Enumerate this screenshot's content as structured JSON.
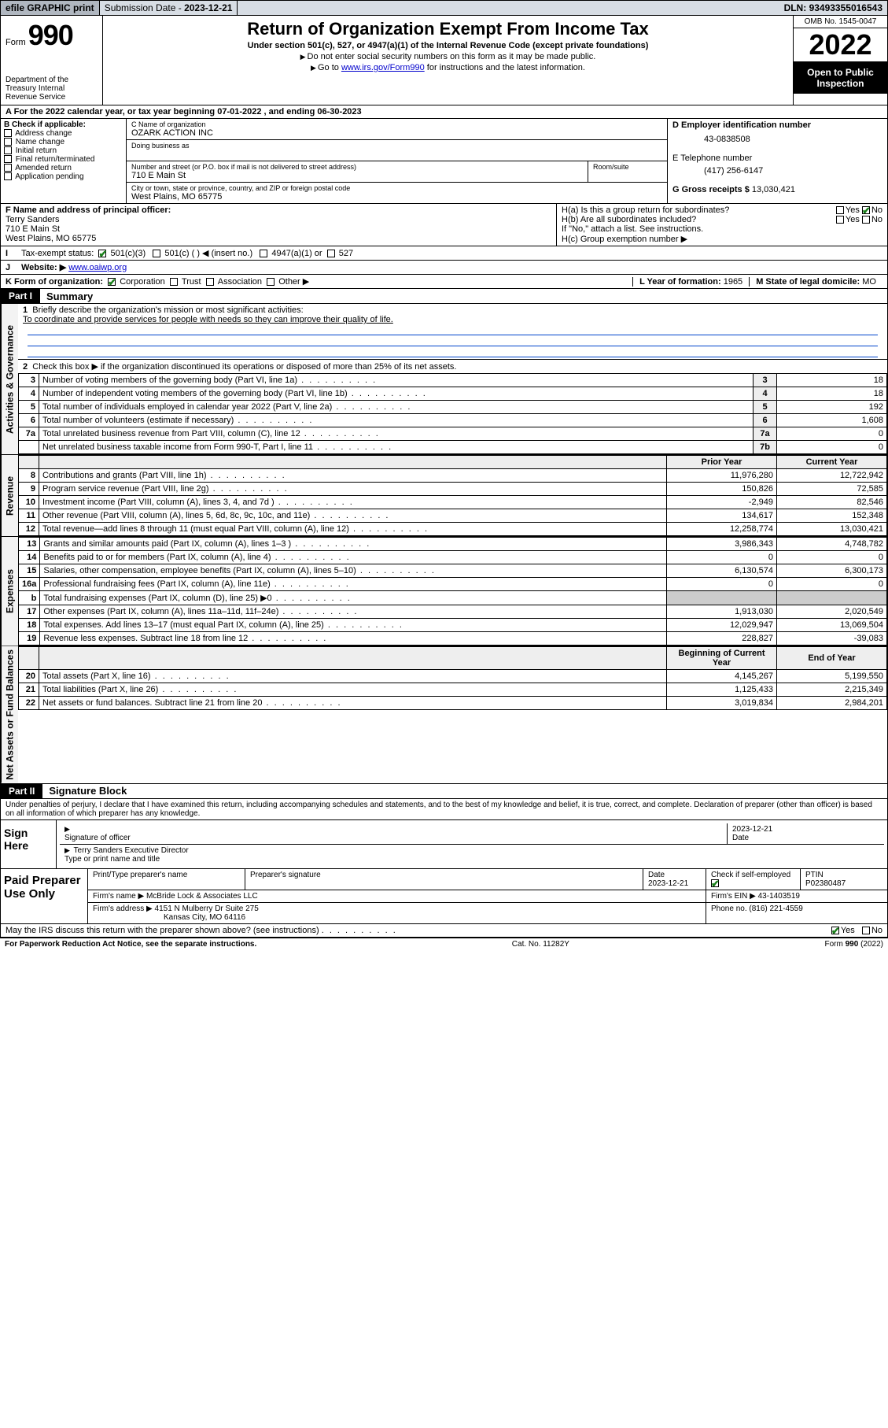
{
  "topbar": {
    "efile": "efile GRAPHIC print",
    "submission_label": "Submission Date - ",
    "submission_date": "2023-12-21",
    "dln_label": "DLN: ",
    "dln": "93493355016543"
  },
  "header": {
    "form_word": "Form",
    "form_no": "990",
    "dept": "Department of the Treasury\nInternal Revenue Service",
    "title": "Return of Organization Exempt From Income Tax",
    "sub": "Under section 501(c), 527, or 4947(a)(1) of the Internal Revenue Code (except private foundations)",
    "instr1": "Do not enter social security numbers on this form as it may be made public.",
    "instr2_pre": "Go to ",
    "instr2_link": "www.irs.gov/Form990",
    "instr2_post": " for instructions and the latest information.",
    "omb": "OMB No. 1545-0047",
    "year": "2022",
    "open": "Open to Public Inspection"
  },
  "rowA": {
    "text_pre": "For the 2022 calendar year, or tax year beginning ",
    "begin": "07-01-2022",
    "mid": " , and ending ",
    "end": "06-30-2023"
  },
  "colB": {
    "hdr": "B Check if applicable:",
    "items": [
      "Address change",
      "Name change",
      "Initial return",
      "Final return/terminated",
      "Amended return",
      "Application pending"
    ]
  },
  "colC": {
    "name_lbl": "C Name of organization",
    "name": "OZARK ACTION INC",
    "dba_lbl": "Doing business as",
    "street_lbl": "Number and street (or P.O. box if mail is not delivered to street address)",
    "room_lbl": "Room/suite",
    "street": "710 E Main St",
    "city_lbl": "City or town, state or province, country, and ZIP or foreign postal code",
    "city": "West Plains, MO  65775"
  },
  "colD": {
    "ein_lbl": "D Employer identification number",
    "ein": "43-0838508",
    "tel_lbl": "E Telephone number",
    "tel": "(417) 256-6147",
    "gross_lbl": "G Gross receipts $ ",
    "gross": "13,030,421"
  },
  "rowF": {
    "f_lbl": "F Name and address of principal officer:",
    "f_name": "Terry Sanders",
    "f_addr1": "710 E Main St",
    "f_addr2": "West Plains, MO  65775",
    "ha": "H(a)  Is this a group return for subordinates?",
    "hb": "H(b)  Are all subordinates included?",
    "hb_note": "If \"No,\" attach a list. See instructions.",
    "hc": "H(c)  Group exemption number ▶",
    "yes": "Yes",
    "no": "No"
  },
  "rowI": {
    "lbl": "Tax-exempt status:",
    "opt1": "501(c)(3)",
    "opt2": "501(c) (   ) ◀ (insert no.)",
    "opt3": "4947(a)(1) or",
    "opt4": "527"
  },
  "rowJ": {
    "lbl": "Website: ▶",
    "val": "www.oaiwp.org"
  },
  "rowK": {
    "lbl": "K Form of organization:",
    "opts": [
      "Corporation",
      "Trust",
      "Association",
      "Other ▶"
    ],
    "year_lbl": "L Year of formation: ",
    "year": "1965",
    "state_lbl": "M State of legal domicile: ",
    "state": "MO"
  },
  "part1": {
    "hdr": "Part I",
    "title": "Summary",
    "line1_lbl": "Briefly describe the organization's mission or most significant activities:",
    "line1_val": "To coordinate and provide services for people with needs so they can improve their quality of life.",
    "line2": "Check this box ▶        if the organization discontinued its operations or disposed of more than 25% of its net assets.",
    "sideA": "Activities & Governance",
    "sideR": "Revenue",
    "sideE": "Expenses",
    "sideN": "Net Assets or Fund Balances",
    "col_prior": "Prior Year",
    "col_current": "Current Year",
    "col_begin": "Beginning of Current Year",
    "col_end": "End of Year",
    "rows_gov": [
      {
        "n": "3",
        "t": "Number of voting members of the governing body (Part VI, line 1a)",
        "b": "3",
        "v": "18"
      },
      {
        "n": "4",
        "t": "Number of independent voting members of the governing body (Part VI, line 1b)",
        "b": "4",
        "v": "18"
      },
      {
        "n": "5",
        "t": "Total number of individuals employed in calendar year 2022 (Part V, line 2a)",
        "b": "5",
        "v": "192"
      },
      {
        "n": "6",
        "t": "Total number of volunteers (estimate if necessary)",
        "b": "6",
        "v": "1,608"
      },
      {
        "n": "7a",
        "t": "Total unrelated business revenue from Part VIII, column (C), line 12",
        "b": "7a",
        "v": "0"
      },
      {
        "n": "",
        "t": "Net unrelated business taxable income from Form 990-T, Part I, line 11",
        "b": "7b",
        "v": "0"
      }
    ],
    "rows_rev": [
      {
        "n": "8",
        "t": "Contributions and grants (Part VIII, line 1h)",
        "p": "11,976,280",
        "c": "12,722,942"
      },
      {
        "n": "9",
        "t": "Program service revenue (Part VIII, line 2g)",
        "p": "150,826",
        "c": "72,585"
      },
      {
        "n": "10",
        "t": "Investment income (Part VIII, column (A), lines 3, 4, and 7d )",
        "p": "-2,949",
        "c": "82,546"
      },
      {
        "n": "11",
        "t": "Other revenue (Part VIII, column (A), lines 5, 6d, 8c, 9c, 10c, and 11e)",
        "p": "134,617",
        "c": "152,348"
      },
      {
        "n": "12",
        "t": "Total revenue—add lines 8 through 11 (must equal Part VIII, column (A), line 12)",
        "p": "12,258,774",
        "c": "13,030,421"
      }
    ],
    "rows_exp": [
      {
        "n": "13",
        "t": "Grants and similar amounts paid (Part IX, column (A), lines 1–3 )",
        "p": "3,986,343",
        "c": "4,748,782"
      },
      {
        "n": "14",
        "t": "Benefits paid to or for members (Part IX, column (A), line 4)",
        "p": "0",
        "c": "0"
      },
      {
        "n": "15",
        "t": "Salaries, other compensation, employee benefits (Part IX, column (A), lines 5–10)",
        "p": "6,130,574",
        "c": "6,300,173"
      },
      {
        "n": "16a",
        "t": "Professional fundraising fees (Part IX, column (A), line 11e)",
        "p": "0",
        "c": "0"
      },
      {
        "n": "b",
        "t": "Total fundraising expenses (Part IX, column (D), line 25) ▶0",
        "p": "",
        "c": ""
      },
      {
        "n": "17",
        "t": "Other expenses (Part IX, column (A), lines 11a–11d, 11f–24e)",
        "p": "1,913,030",
        "c": "2,020,549"
      },
      {
        "n": "18",
        "t": "Total expenses. Add lines 13–17 (must equal Part IX, column (A), line 25)",
        "p": "12,029,947",
        "c": "13,069,504"
      },
      {
        "n": "19",
        "t": "Revenue less expenses. Subtract line 18 from line 12",
        "p": "228,827",
        "c": "-39,083"
      }
    ],
    "rows_net": [
      {
        "n": "20",
        "t": "Total assets (Part X, line 16)",
        "p": "4,145,267",
        "c": "5,199,550"
      },
      {
        "n": "21",
        "t": "Total liabilities (Part X, line 26)",
        "p": "1,125,433",
        "c": "2,215,349"
      },
      {
        "n": "22",
        "t": "Net assets or fund balances. Subtract line 21 from line 20",
        "p": "3,019,834",
        "c": "2,984,201"
      }
    ]
  },
  "part2": {
    "hdr": "Part II",
    "title": "Signature Block",
    "decl": "Under penalties of perjury, I declare that I have examined this return, including accompanying schedules and statements, and to the best of my knowledge and belief, it is true, correct, and complete. Declaration of preparer (other than officer) is based on all information of which preparer has any knowledge.",
    "sign_here": "Sign Here",
    "sig_officer": "Signature of officer",
    "sig_date": "2023-12-21",
    "date_lbl": "Date",
    "name_title": "Terry Sanders  Executive Director",
    "name_title_lbl": "Type or print name and title",
    "paid": "Paid Preparer Use Only",
    "p_name_lbl": "Print/Type preparer's name",
    "p_sig_lbl": "Preparer's signature",
    "p_date_lbl": "Date",
    "p_date": "2023-12-21",
    "p_check_lbl": "Check          if self-employed",
    "ptin_lbl": "PTIN",
    "ptin": "P02380487",
    "firm_name_lbl": "Firm's name    ▶",
    "firm_name": "McBride Lock & Associates LLC",
    "firm_ein_lbl": "Firm's EIN ▶",
    "firm_ein": "43-1403519",
    "firm_addr_lbl": "Firm's address ▶",
    "firm_addr1": "4151 N Mulberry Dr Suite 275",
    "firm_addr2": "Kansas City, MO  64116",
    "phone_lbl": "Phone no. ",
    "phone": "(816) 221-4559",
    "discuss": "May the IRS discuss this return with the preparer shown above? (see instructions)",
    "yes": "Yes",
    "no": "No"
  },
  "footer": {
    "left": "For Paperwork Reduction Act Notice, see the separate instructions.",
    "mid": "Cat. No. 11282Y",
    "right": "Form 990 (2022)"
  },
  "colors": {
    "topbar_bg": "#d7dde4",
    "check_green": "#1a7f1a",
    "link": "#0000cc",
    "blueline": "#0044cc"
  }
}
